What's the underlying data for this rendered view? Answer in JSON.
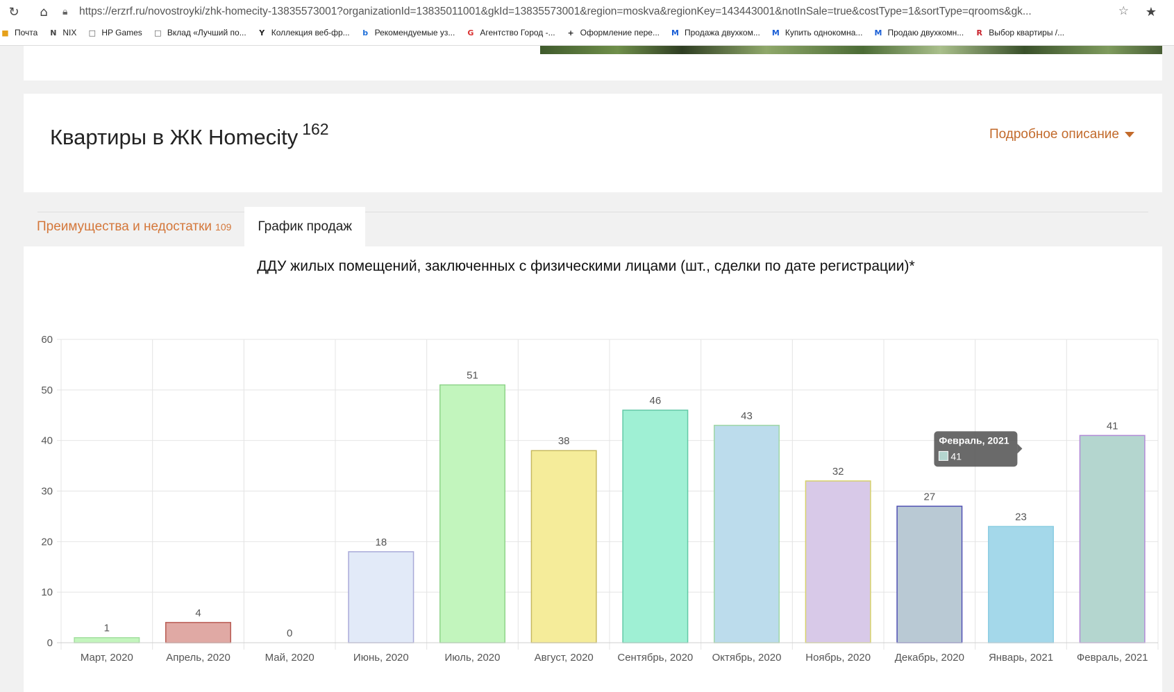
{
  "browser": {
    "url": "https://erzrf.ru/novostroyki/zhk-homecity-13835573001?organizationId=13835011001&gkId=13835573001&region=moskva&regionKey=143443001&notInSale=true&costType=1&sortType=qrooms&gk...",
    "icons": {
      "refresh": "refresh-icon",
      "home": "home-icon",
      "lock": "lock-icon",
      "bookmark_star": "star-icon",
      "favorites": "favorites-icon"
    },
    "bookmarks": [
      {
        "label": "Почта",
        "icon": "mail-icon",
        "color": "#e6a11a"
      },
      {
        "label": "NIX",
        "icon": "nix-icon",
        "color": "#444444"
      },
      {
        "label": "HP Games",
        "icon": "page-icon",
        "color": "#555555"
      },
      {
        "label": "Вклад «Лучший по...",
        "icon": "page-icon",
        "color": "#555555"
      },
      {
        "label": "Коллекция веб-фр...",
        "icon": "y-icon",
        "color": "#222222"
      },
      {
        "label": "Рекомендуемые уз...",
        "icon": "bing-icon",
        "color": "#1e6fd9"
      },
      {
        "label": "Агентство Город -...",
        "icon": "g-icon",
        "color": "#d93232"
      },
      {
        "label": "Оформление пере...",
        "icon": "plus-icon",
        "color": "#222222"
      },
      {
        "label": "Продажа двухком...",
        "icon": "m-icon",
        "color": "#1a5fd6"
      },
      {
        "label": "Купить однокомна...",
        "icon": "m-icon",
        "color": "#1a5fd6"
      },
      {
        "label": "Продаю двухкомн...",
        "icon": "m-icon",
        "color": "#1a5fd6"
      },
      {
        "label": "Выбор квартиры /...",
        "icon": "ro-icon",
        "color": "#c8202a"
      }
    ]
  },
  "page": {
    "title": "Квартиры в ЖК Homecity",
    "title_count": "162",
    "detail_link": "Подробное описание",
    "tabs": [
      {
        "label": "Преимущества и недостатки",
        "count": "109"
      },
      {
        "label": "График продаж"
      }
    ]
  },
  "chart_data": {
    "type": "bar",
    "title": "ДДУ жилых помещений, заключенных с физическими лицами (шт., сделки по дате регистрации)*",
    "categories": [
      "Март, 2020",
      "Апрель, 2020",
      "Май, 2020",
      "Июнь, 2020",
      "Июль, 2020",
      "Август, 2020",
      "Сентябрь, 2020",
      "Октябрь, 2020",
      "Ноябрь, 2020",
      "Декабрь, 2020",
      "Январь, 2021",
      "Февраль, 2021"
    ],
    "values": [
      1,
      4,
      0,
      18,
      51,
      38,
      46,
      43,
      32,
      27,
      23,
      41
    ],
    "value_labels": [
      "1",
      "4",
      "0",
      "18",
      "51",
      "38",
      "46",
      "43",
      "32",
      "27",
      "23",
      "41"
    ],
    "colors": [
      "#c3f5bd",
      "#e0a9a4",
      "#f0f0f0",
      "#e2eaf8",
      "#c2f5bd",
      "#f5ec9a",
      "#9ff0d4",
      "#bcdcec",
      "#d8c9e8",
      "#b9c9d4",
      "#a4d8ea",
      "#b4d6cf"
    ],
    "borders": [
      "#a4dfa0",
      "#b85b52",
      "#cccccc",
      "#a9a9d8",
      "#8fd48a",
      "#c7b95e",
      "#63c9a7",
      "#9fd7a5",
      "#d6d16a",
      "#4f4fb3",
      "#8ccde2",
      "#b18ad6"
    ],
    "ylim": [
      0,
      60
    ],
    "yticks": [
      0,
      10,
      20,
      30,
      40,
      50,
      60
    ],
    "ytick_labels": [
      "0",
      "10",
      "20",
      "30",
      "40",
      "50",
      "60"
    ],
    "xlabel": "",
    "ylabel": "",
    "grid": true,
    "tooltip": {
      "title": "Февраль, 2021",
      "value": "41",
      "category_index": 11
    }
  }
}
